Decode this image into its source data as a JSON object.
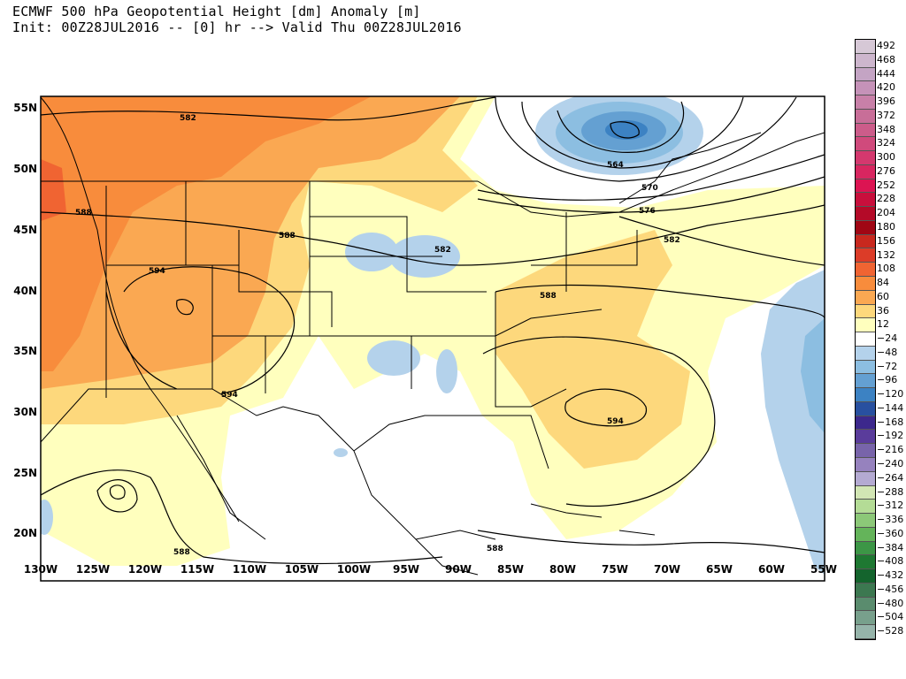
{
  "title": {
    "line1": "ECMWF 500 hPa Geopotential Height [dm] Anomaly [m]",
    "line2": "Init: 00Z28JUL2016 -- [0] hr --> Valid Thu 00Z28JUL2016"
  },
  "map": {
    "lat_labels": [
      "55N",
      "50N",
      "45N",
      "40N",
      "35N",
      "30N",
      "25N",
      "20N"
    ],
    "lon_labels": [
      "130W",
      "125W",
      "120W",
      "115W",
      "110W",
      "105W",
      "100W",
      "95W",
      "90W",
      "85W",
      "80W",
      "75W",
      "70W",
      "65W",
      "60W",
      "55W"
    ],
    "contour_labels": [
      "582",
      "588",
      "588",
      "594",
      "588",
      "582",
      "582",
      "564",
      "570",
      "576",
      "588",
      "582",
      "594",
      "594",
      "588",
      "588"
    ]
  },
  "colorbar": {
    "labels": [
      "492",
      "468",
      "444",
      "420",
      "396",
      "372",
      "348",
      "324",
      "300",
      "276",
      "252",
      "228",
      "204",
      "180",
      "156",
      "132",
      "108",
      "84",
      "60",
      "36",
      "12",
      "-24",
      "-48",
      "-72",
      "-96",
      "-120",
      "-144",
      "-168",
      "-192",
      "-216",
      "-240",
      "-264",
      "-288",
      "-312",
      "-336",
      "-360",
      "-384",
      "-408",
      "-432",
      "-456",
      "-480",
      "-504",
      "-528"
    ],
    "colors": [
      "#d6c8d6",
      "#cdb6cd",
      "#c4a4c4",
      "#c592b8",
      "#c880a8",
      "#c86e98",
      "#cc5c8a",
      "#d04a7c",
      "#d4386e",
      "#d82660",
      "#dc1452",
      "#c80f3c",
      "#b40a28",
      "#a00614",
      "#c8281e",
      "#dc3c28",
      "#f06432",
      "#f88c3c",
      "#faa852",
      "#fdd87c",
      "#ffffbe",
      "#ffffff",
      "#b4d2eb",
      "#8cbee1",
      "#64a0d2",
      "#3c82c3",
      "#2850a0",
      "#3c288c",
      "#5a3c9b",
      "#7864aa",
      "#9682be",
      "#b4aad2",
      "#d2e6b4",
      "#b4dc96",
      "#8cc878",
      "#64b45a",
      "#3c9646",
      "#1e7832",
      "#14642d",
      "#3c7850",
      "#5a8c6e",
      "#78a08c",
      "#96b4aa"
    ]
  }
}
